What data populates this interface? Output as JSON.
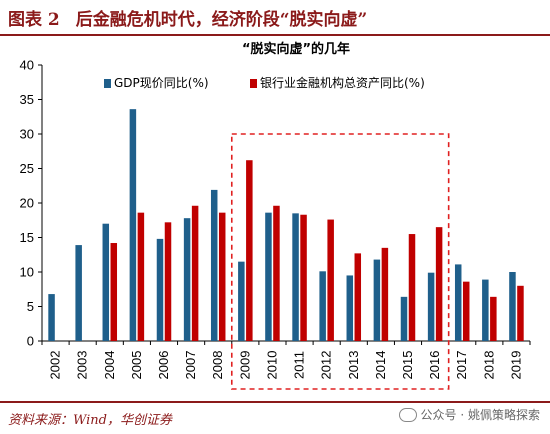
{
  "header": {
    "figure_label": "图表 2",
    "title": "后金融危机时代，经济阶段“脱实向虚”"
  },
  "footer": {
    "source": "资料来源：Wind，华创证券",
    "watermark": "公众号 · 姚佩策略探索"
  },
  "colors": {
    "accent": "#8b1a1a",
    "series1": "#1f5f8b",
    "series2": "#c00000",
    "highlight_box": "#e02020"
  },
  "chart_data": {
    "type": "bar",
    "title": "“脱实向虚”的几年",
    "categories": [
      "2002",
      "2003",
      "2004",
      "2005",
      "2006",
      "2007",
      "2008",
      "2009",
      "2010",
      "2011",
      "2012",
      "2013",
      "2014",
      "2015",
      "2016",
      "2017",
      "2018",
      "2019"
    ],
    "series": [
      {
        "name": "GDP现价同比(%)",
        "values": [
          6.8,
          13.9,
          17.0,
          33.6,
          14.8,
          17.8,
          21.9,
          11.5,
          18.6,
          18.5,
          10.1,
          9.5,
          11.8,
          6.4,
          9.9,
          11.1,
          8.9,
          10.0
        ]
      },
      {
        "name": "银行业金融机构总资产同比(%)",
        "values": [
          null,
          null,
          14.2,
          18.6,
          17.2,
          19.6,
          18.6,
          26.2,
          19.6,
          18.3,
          17.6,
          12.7,
          13.5,
          15.5,
          16.5,
          8.6,
          6.4,
          8.0
        ]
      }
    ],
    "ylim": [
      0,
      40
    ],
    "yticks": [
      0,
      5,
      10,
      15,
      20,
      25,
      30,
      35,
      40
    ],
    "legend_position": "top-left",
    "highlight_range": [
      "2009",
      "2016"
    ]
  }
}
